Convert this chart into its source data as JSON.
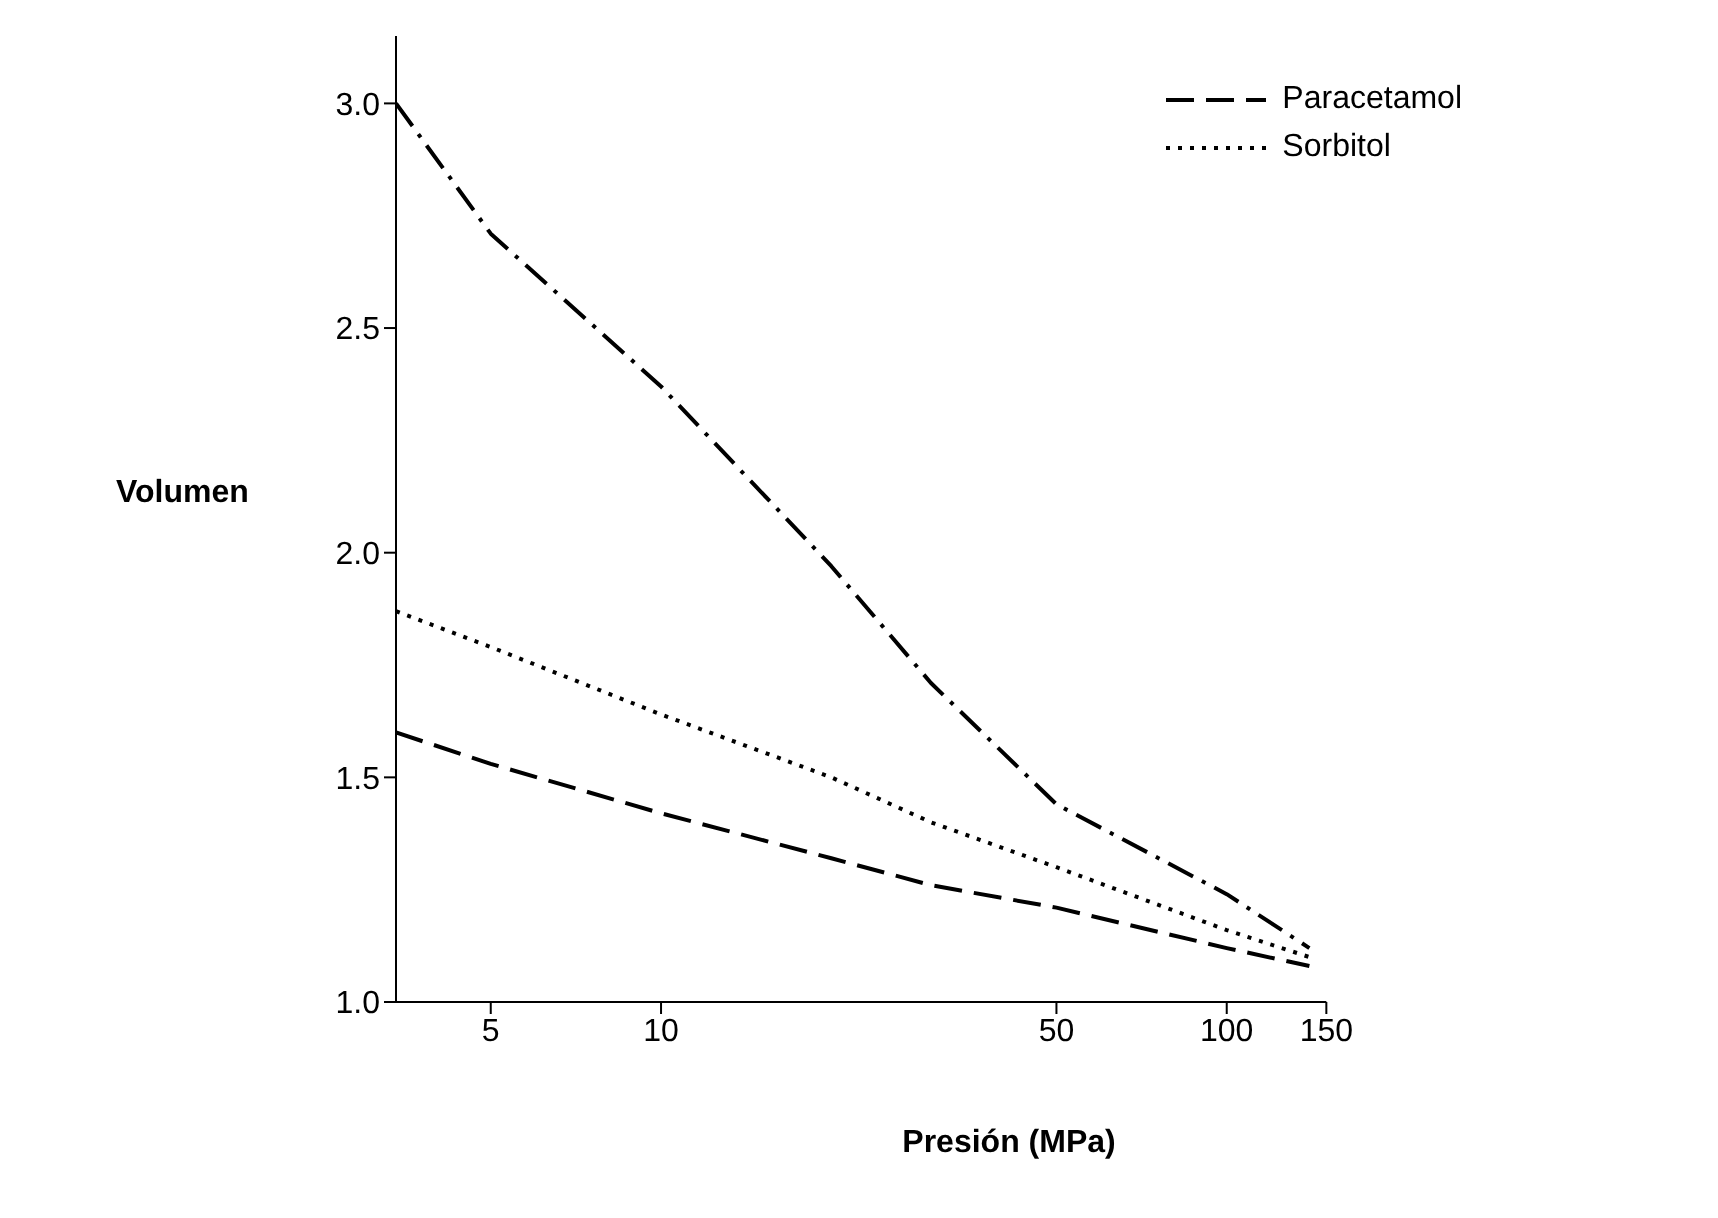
{
  "chart_data": {
    "type": "line",
    "xlabel": "Presión (MPa)",
    "ylabel": "Volumen",
    "log": "x",
    "legend": "top right",
    "marker": "none",
    "xlim": [
      3.4,
      150
    ],
    "xticks": [
      5,
      10,
      50,
      100,
      150
    ],
    "ylim": [
      1,
      3.15
    ],
    "yticks": [
      {
        "value": 1,
        "label": "1.0"
      },
      {
        "value": 1.5,
        "label": "1.5"
      },
      {
        "value": 2,
        "label": "2.0"
      },
      {
        "value": 2.5,
        "label": "2.5"
      },
      {
        "value": 3,
        "label": "3.0"
      }
    ],
    "x": [
      3.4,
      5,
      10,
      20,
      30,
      50,
      100,
      140
    ],
    "series": [
      {
        "name": "Paracetamol",
        "color": "#000000",
        "line_style": "dashed",
        "values": [
          1.6,
          1.53,
          1.42,
          1.32,
          1.26,
          1.21,
          1.12,
          1.08
        ]
      },
      {
        "name": "Sorbitol",
        "color": "#000000",
        "line_style": "dotted",
        "values": [
          1.87,
          1.79,
          1.64,
          1.5,
          1.4,
          1.3,
          1.16,
          1.1
        ]
      },
      {
        "color": "#000000",
        "line_style": "dashdot",
        "values": [
          3.0,
          2.71,
          2.37,
          1.97,
          1.71,
          1.44,
          1.24,
          1.12
        ]
      }
    ]
  }
}
